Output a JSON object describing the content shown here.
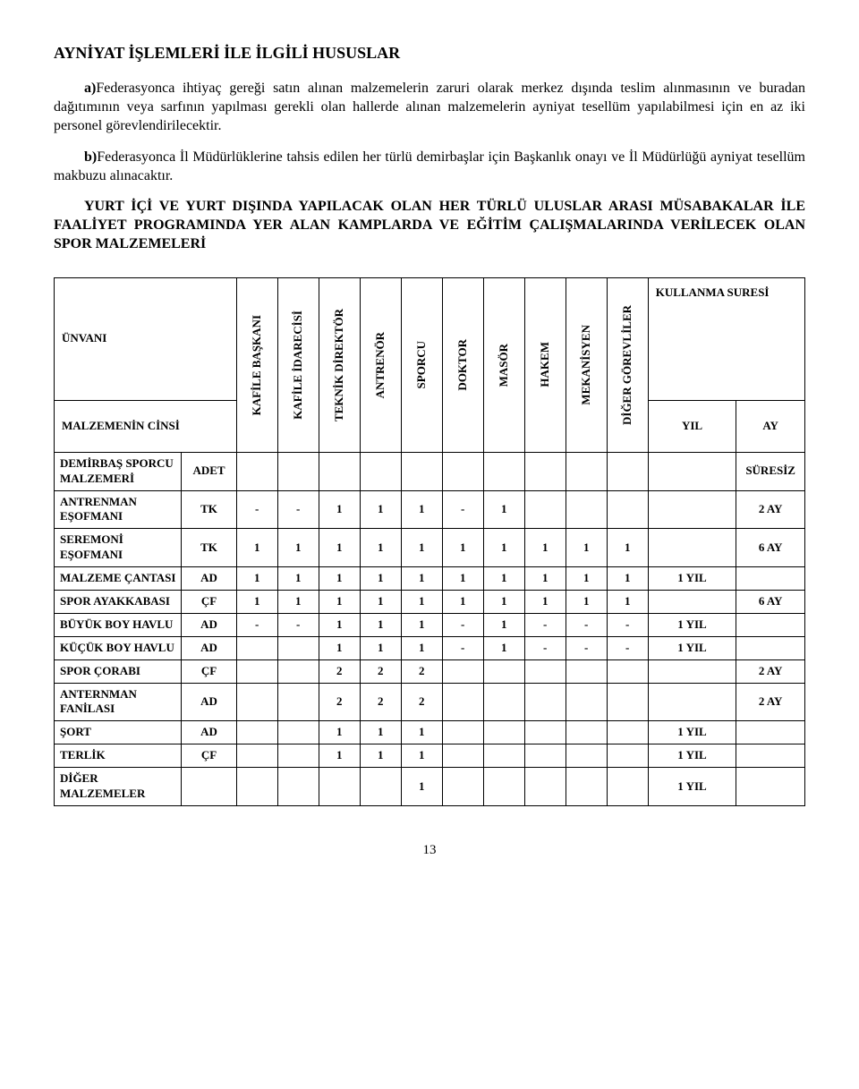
{
  "heading": "AYNİYAT İŞLEMLERİ İLE İLGİLİ HUSUSLAR",
  "para_a_prefix": "a)",
  "para_a": "Federasyonca ihtiyaç gereği satın alınan malzemelerin zaruri olarak merkez dışında teslim alınmasının ve buradan dağıtımının veya sarfının yapılması gerekli olan hallerde alınan malzemelerin ayniyat tesellüm yapılabilmesi için en az iki personel görevlendirilecektir.",
  "para_b_prefix": "b)",
  "para_b": "Federasyonca İl Müdürlüklerine tahsis edilen her türlü demirbaşlar için Başkanlık onayı ve İl Müdürlüğü ayniyat tesellüm makbuzu alınacaktır.",
  "bold_block": "YURT İÇİ VE YURT DIŞINDA YAPILACAK OLAN HER TÜRLÜ ULUSLAR ARASI MÜSABAKALAR İLE FAALİYET PROGRAMINDA YER ALAN KAMPLARDA VE EĞİTİM ÇALIŞMALARINDA VERİLECEK OLAN SPOR MALZEMELERİ",
  "headers": {
    "unvani": "ÜNVANI",
    "malzemenin_cinsi": "MALZEMENİN CİNSİ",
    "cols": [
      "KAFİLE BAŞKANI",
      "KAFİLE İDARECİSİ",
      "TEKNİK DİREKTÖR",
      "ANTRENÖR",
      "SPORCU",
      "DOKTOR",
      "MASÖR",
      "HAKEM",
      "MEKANİSYEN",
      "DİĞER GÖREVLİLER"
    ],
    "kullanma_suresi": "KULLANMA SURESİ",
    "yil": "YIL",
    "ay": "AY"
  },
  "rows": [
    {
      "label": "DEMİRBAŞ SPORCU MALZEMERİ",
      "unit": "ADET",
      "cells": [
        "",
        "",
        "",
        "",
        "",
        "",
        "",
        "",
        "",
        ""
      ],
      "yil": "",
      "ay": "SÜRESİZ"
    },
    {
      "label": "ANTRENMAN EŞOFMANI",
      "unit": "TK",
      "cells": [
        "-",
        "-",
        "1",
        "1",
        "1",
        "-",
        "1",
        "",
        "",
        ""
      ],
      "yil": "",
      "ay": "2 AY"
    },
    {
      "label": "SEREMONİ EŞOFMANI",
      "unit": "TK",
      "cells": [
        "1",
        "1",
        "1",
        "1",
        "1",
        "1",
        "1",
        "1",
        "1",
        "1"
      ],
      "yil": "",
      "ay": "6 AY"
    },
    {
      "label": "MALZEME ÇANTASI",
      "unit": "AD",
      "cells": [
        "1",
        "1",
        "1",
        "1",
        "1",
        "1",
        "1",
        "1",
        "1",
        "1"
      ],
      "yil": "1 YIL",
      "ay": ""
    },
    {
      "label": "SPOR AYAKKABASI",
      "unit": "ÇF",
      "cells": [
        "1",
        "1",
        "1",
        "1",
        "1",
        "1",
        "1",
        "1",
        "1",
        "1"
      ],
      "yil": "",
      "ay": "6 AY"
    },
    {
      "label": "BÜYÜK BOY HAVLU",
      "unit": "AD",
      "cells": [
        "-",
        "-",
        "1",
        "1",
        "1",
        "-",
        "1",
        "-",
        "-",
        "-"
      ],
      "yil": "1 YIL",
      "ay": ""
    },
    {
      "label": "KÜÇÜK BOY HAVLU",
      "unit": "AD",
      "cells": [
        "",
        "",
        "1",
        "1",
        "1",
        "-",
        "1",
        "-",
        "-",
        "-"
      ],
      "yil": "1 YIL",
      "ay": ""
    },
    {
      "label": "SPOR ÇORABI",
      "unit": "ÇF",
      "cells": [
        "",
        "",
        "2",
        "2",
        "2",
        "",
        "",
        "",
        "",
        ""
      ],
      "yil": "",
      "ay": "2 AY"
    },
    {
      "label": "ANTERNMAN FANİLASI",
      "unit": "AD",
      "cells": [
        "",
        "",
        "2",
        "2",
        "2",
        "",
        "",
        "",
        "",
        ""
      ],
      "yil": "",
      "ay": "2 AY"
    },
    {
      "label": "ŞORT",
      "unit": "AD",
      "cells": [
        "",
        "",
        "1",
        "1",
        "1",
        "",
        "",
        "",
        "",
        ""
      ],
      "yil": "1 YIL",
      "ay": ""
    },
    {
      "label": "TERLİK",
      "unit": "ÇF",
      "cells": [
        "",
        "",
        "1",
        "1",
        "1",
        "",
        "",
        "",
        "",
        ""
      ],
      "yil": "1 YIL",
      "ay": ""
    },
    {
      "label": "DİĞER MALZEMELER",
      "unit": "",
      "cells": [
        "",
        "",
        "",
        "",
        "1",
        "",
        "",
        "",
        "",
        ""
      ],
      "yil": "1 YIL",
      "ay": ""
    }
  ],
  "page_number": "13"
}
